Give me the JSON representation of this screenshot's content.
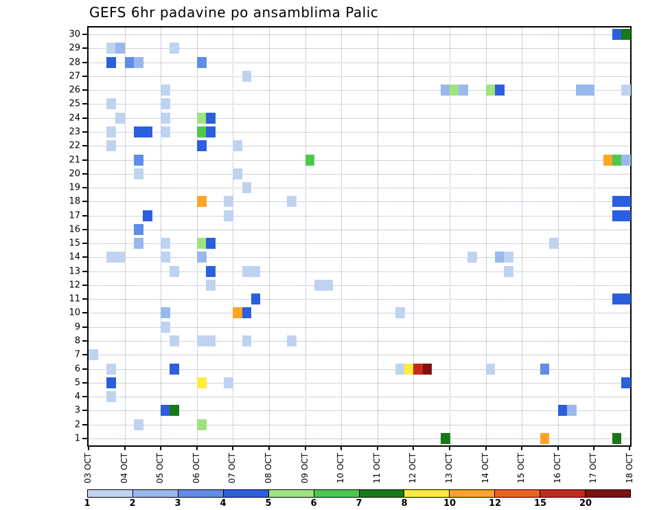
{
  "title": "GEFS 6hr padavine po ansamblima Palic",
  "chart_data": {
    "type": "heatmap",
    "title": "GEFS 6hr padavine po ansamblima Palic",
    "x_tick_labels": [
      "03 OCT",
      "04 OCT",
      "05 OCT",
      "06 OCT",
      "07 OCT",
      "08 OCT",
      "09 OCT",
      "10 OCT",
      "11 OCT",
      "12 OCT",
      "13 OCT",
      "14 OCT",
      "15 OCT",
      "16 OCT",
      "17 OCT",
      "18 OCT"
    ],
    "steps_per_day": 4,
    "y_tick_labels": [
      "30",
      "29",
      "28",
      "27",
      "26",
      "25",
      "24",
      "23",
      "22",
      "21",
      "20",
      "19",
      "18",
      "17",
      "16",
      "15",
      "14",
      "13",
      "12",
      "11",
      "10",
      "9",
      "8",
      "7",
      "6",
      "5",
      "4",
      "3",
      "2",
      "1"
    ],
    "grid": "dotted",
    "legend": {
      "ticks": [
        1,
        2,
        3,
        4,
        5,
        6,
        7,
        8,
        10,
        12,
        15,
        20
      ],
      "colors": [
        "#BFD3F1",
        "#99B9EE",
        "#5F8DE8",
        "#2B5FDE",
        "#9FE37F",
        "#4DC84D",
        "#167A16",
        "#FFEC3A",
        "#FFA526",
        "#F2601F",
        "#C52A1D",
        "#7E1111"
      ]
    },
    "cells": [
      {
        "m": 30,
        "q": 58,
        "v": 4
      },
      {
        "m": 30,
        "q": 59,
        "v": 7
      },
      {
        "m": 29,
        "q": 2,
        "v": 1
      },
      {
        "m": 29,
        "q": 3,
        "v": 2
      },
      {
        "m": 29,
        "q": 9,
        "v": 1
      },
      {
        "m": 28,
        "q": 2,
        "v": 4
      },
      {
        "m": 28,
        "q": 4,
        "v": 3
      },
      {
        "m": 28,
        "q": 5,
        "v": 2
      },
      {
        "m": 28,
        "q": 12,
        "v": 3
      },
      {
        "m": 27,
        "q": 17,
        "v": 1
      },
      {
        "m": 26,
        "q": 8,
        "v": 1
      },
      {
        "m": 26,
        "q": 39,
        "v": 2
      },
      {
        "m": 26,
        "q": 40,
        "v": 5
      },
      {
        "m": 26,
        "q": 41,
        "v": 2
      },
      {
        "m": 26,
        "q": 44,
        "v": 5
      },
      {
        "m": 26,
        "q": 45,
        "v": 4
      },
      {
        "m": 26,
        "q": 54,
        "v": 2
      },
      {
        "m": 26,
        "q": 55,
        "v": 2
      },
      {
        "m": 26,
        "q": 59,
        "v": 1
      },
      {
        "m": 25,
        "q": 2,
        "v": 1
      },
      {
        "m": 25,
        "q": 8,
        "v": 1
      },
      {
        "m": 24,
        "q": 3,
        "v": 1
      },
      {
        "m": 24,
        "q": 8,
        "v": 1
      },
      {
        "m": 24,
        "q": 12,
        "v": 5
      },
      {
        "m": 24,
        "q": 13,
        "v": 4
      },
      {
        "m": 23,
        "q": 2,
        "v": 1
      },
      {
        "m": 23,
        "q": 5,
        "v": 4
      },
      {
        "m": 23,
        "q": 6,
        "v": 4
      },
      {
        "m": 23,
        "q": 8,
        "v": 1
      },
      {
        "m": 23,
        "q": 12,
        "v": 6
      },
      {
        "m": 23,
        "q": 13,
        "v": 4
      },
      {
        "m": 22,
        "q": 2,
        "v": 1
      },
      {
        "m": 22,
        "q": 12,
        "v": 4
      },
      {
        "m": 22,
        "q": 16,
        "v": 1
      },
      {
        "m": 21,
        "q": 5,
        "v": 3
      },
      {
        "m": 21,
        "q": 24,
        "v": 6
      },
      {
        "m": 21,
        "q": 57,
        "v": 10
      },
      {
        "m": 21,
        "q": 58,
        "v": 6
      },
      {
        "m": 21,
        "q": 59,
        "v": 2
      },
      {
        "m": 20,
        "q": 5,
        "v": 1
      },
      {
        "m": 20,
        "q": 16,
        "v": 1
      },
      {
        "m": 19,
        "q": 17,
        "v": 1
      },
      {
        "m": 18,
        "q": 12,
        "v": 10
      },
      {
        "m": 18,
        "q": 15,
        "v": 1
      },
      {
        "m": 18,
        "q": 22,
        "v": 1
      },
      {
        "m": 18,
        "q": 58,
        "v": 4
      },
      {
        "m": 18,
        "q": 59,
        "v": 4
      },
      {
        "m": 17,
        "q": 6,
        "v": 4
      },
      {
        "m": 17,
        "q": 15,
        "v": 1
      },
      {
        "m": 17,
        "q": 58,
        "v": 4
      },
      {
        "m": 17,
        "q": 59,
        "v": 4
      },
      {
        "m": 16,
        "q": 5,
        "v": 3
      },
      {
        "m": 15,
        "q": 5,
        "v": 2
      },
      {
        "m": 15,
        "q": 8,
        "v": 1
      },
      {
        "m": 15,
        "q": 12,
        "v": 5
      },
      {
        "m": 15,
        "q": 13,
        "v": 4
      },
      {
        "m": 15,
        "q": 51,
        "v": 1
      },
      {
        "m": 14,
        "q": 2,
        "v": 1
      },
      {
        "m": 14,
        "q": 3,
        "v": 1
      },
      {
        "m": 14,
        "q": 8,
        "v": 1
      },
      {
        "m": 14,
        "q": 12,
        "v": 2
      },
      {
        "m": 14,
        "q": 42,
        "v": 1
      },
      {
        "m": 14,
        "q": 45,
        "v": 2
      },
      {
        "m": 14,
        "q": 46,
        "v": 1
      },
      {
        "m": 13,
        "q": 9,
        "v": 1
      },
      {
        "m": 13,
        "q": 13,
        "v": 4
      },
      {
        "m": 13,
        "q": 17,
        "v": 1
      },
      {
        "m": 13,
        "q": 18,
        "v": 1
      },
      {
        "m": 13,
        "q": 46,
        "v": 1
      },
      {
        "m": 12,
        "q": 13,
        "v": 1
      },
      {
        "m": 12,
        "q": 25,
        "v": 1
      },
      {
        "m": 12,
        "q": 26,
        "v": 1
      },
      {
        "m": 11,
        "q": 18,
        "v": 4
      },
      {
        "m": 11,
        "q": 58,
        "v": 4
      },
      {
        "m": 11,
        "q": 59,
        "v": 4
      },
      {
        "m": 10,
        "q": 8,
        "v": 2
      },
      {
        "m": 10,
        "q": 16,
        "v": 10
      },
      {
        "m": 10,
        "q": 17,
        "v": 4
      },
      {
        "m": 10,
        "q": 34,
        "v": 1
      },
      {
        "m": 9,
        "q": 8,
        "v": 1
      },
      {
        "m": 8,
        "q": 9,
        "v": 1
      },
      {
        "m": 8,
        "q": 12,
        "v": 1
      },
      {
        "m": 8,
        "q": 13,
        "v": 1
      },
      {
        "m": 8,
        "q": 17,
        "v": 1
      },
      {
        "m": 8,
        "q": 22,
        "v": 1
      },
      {
        "m": 7,
        "q": 0,
        "v": 1
      },
      {
        "m": 6,
        "q": 2,
        "v": 1
      },
      {
        "m": 6,
        "q": 9,
        "v": 4
      },
      {
        "m": 6,
        "q": 34,
        "v": 1
      },
      {
        "m": 6,
        "q": 35,
        "v": 8
      },
      {
        "m": 6,
        "q": 36,
        "v": 15
      },
      {
        "m": 6,
        "q": 37,
        "v": 20
      },
      {
        "m": 6,
        "q": 44,
        "v": 1
      },
      {
        "m": 6,
        "q": 50,
        "v": 3
      },
      {
        "m": 5,
        "q": 2,
        "v": 4
      },
      {
        "m": 5,
        "q": 12,
        "v": 8
      },
      {
        "m": 5,
        "q": 15,
        "v": 1
      },
      {
        "m": 5,
        "q": 59,
        "v": 4
      },
      {
        "m": 4,
        "q": 2,
        "v": 1
      },
      {
        "m": 3,
        "q": 8,
        "v": 4
      },
      {
        "m": 3,
        "q": 9,
        "v": 7
      },
      {
        "m": 3,
        "q": 52,
        "v": 4
      },
      {
        "m": 3,
        "q": 53,
        "v": 2
      },
      {
        "m": 2,
        "q": 5,
        "v": 1
      },
      {
        "m": 2,
        "q": 12,
        "v": 5
      },
      {
        "m": 1,
        "q": 39,
        "v": 7
      },
      {
        "m": 1,
        "q": 50,
        "v": 10
      },
      {
        "m": 1,
        "q": 58,
        "v": 7
      }
    ]
  }
}
